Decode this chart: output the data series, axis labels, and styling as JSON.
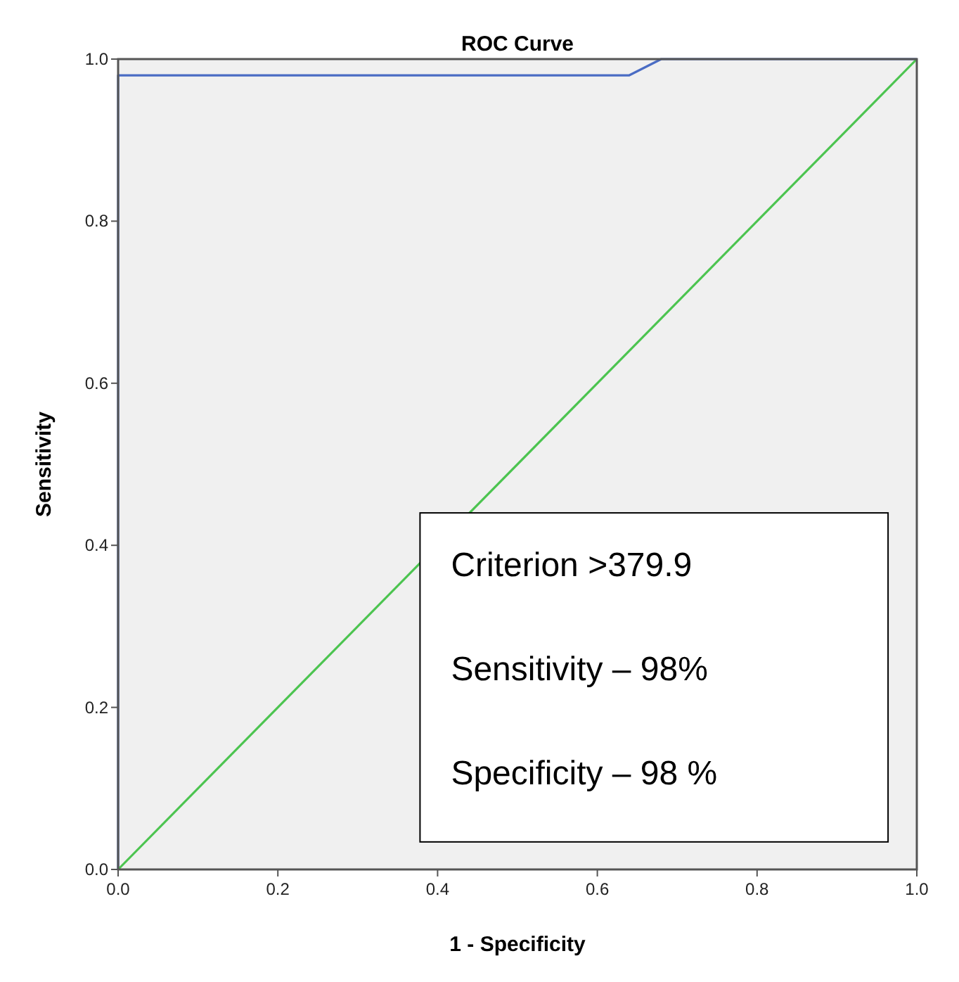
{
  "chart_data": {
    "type": "line",
    "title": "ROC Curve",
    "xlabel": "1 - Specificity",
    "ylabel": "Sensitivity",
    "xlim": [
      0,
      1
    ],
    "ylim": [
      0,
      1
    ],
    "xticks": [
      {
        "value": 0,
        "label": "0.0"
      },
      {
        "value": 0.2,
        "label": "0.2"
      },
      {
        "value": 0.4,
        "label": "0.4"
      },
      {
        "value": 0.6,
        "label": "0.6"
      },
      {
        "value": 0.8,
        "label": "0.8"
      },
      {
        "value": 1,
        "label": "1.0"
      }
    ],
    "yticks": [
      {
        "value": 0,
        "label": "0.0"
      },
      {
        "value": 0.2,
        "label": "0.2"
      },
      {
        "value": 0.4,
        "label": "0.4"
      },
      {
        "value": 0.6,
        "label": "0.6"
      },
      {
        "value": 0.8,
        "label": "0.8"
      },
      {
        "value": 1,
        "label": "1.0"
      }
    ],
    "series": [
      {
        "color": "#4a6cc4",
        "x": [
          0,
          0,
          0.64,
          0.68,
          1
        ],
        "values": [
          0,
          0.98,
          0.98,
          1,
          1
        ]
      },
      {
        "color": "#4cc450",
        "x": [
          0,
          1
        ],
        "values": [
          0,
          1
        ]
      }
    ],
    "annotations": [
      "Criterion >379.9",
      "Sensitivity – 98%",
      "Specificity – 98 %"
    ],
    "grid": false,
    "marker": "none",
    "line_style": "solid"
  }
}
